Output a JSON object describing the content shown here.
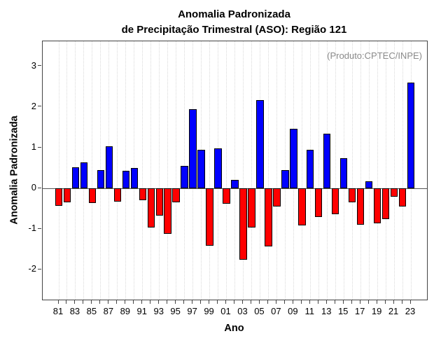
{
  "title": {
    "line1": "Anomalia Padronizada",
    "line2": "de Precipitação Trimestral (ASO): Região 121"
  },
  "annotation": "(Produto:CPTEC/INPE)",
  "chart_data": {
    "type": "bar",
    "title": "Anomalia Padronizada de Precipitação Trimestral (ASO): Região 121",
    "xlabel": "Ano",
    "ylabel": "Anomalia Padronizada",
    "categories": [
      "81",
      "82",
      "83",
      "84",
      "85",
      "86",
      "87",
      "88",
      "89",
      "90",
      "91",
      "92",
      "93",
      "94",
      "95",
      "96",
      "97",
      "98",
      "99",
      "00",
      "01",
      "02",
      "03",
      "04",
      "05",
      "06",
      "07",
      "08",
      "09",
      "10",
      "11",
      "12",
      "13",
      "14",
      "15",
      "16",
      "17",
      "18",
      "19",
      "20",
      "21",
      "22",
      "23"
    ],
    "values": [
      -0.43,
      -0.34,
      0.52,
      0.63,
      -0.37,
      0.45,
      1.03,
      -0.33,
      0.44,
      0.5,
      -0.29,
      -0.97,
      -0.67,
      -1.12,
      -0.34,
      0.55,
      1.95,
      0.94,
      -1.41,
      0.99,
      -0.38,
      0.21,
      -1.75,
      -0.97,
      2.18,
      -1.43,
      -0.44,
      0.45,
      1.46,
      -0.92,
      0.95,
      -0.71,
      1.34,
      -0.63,
      0.74,
      -0.35,
      -0.9,
      0.18,
      -0.86,
      -0.76,
      -0.21,
      -0.44,
      2.61
    ],
    "ylim": [
      -2.74,
      3.62
    ],
    "yticks": [
      -2,
      -1,
      0,
      1,
      2,
      3
    ],
    "xtick_label_step": 2,
    "positive_color": "#0000ff",
    "negative_color": "#ff0000",
    "grid": "dotted-vertical-per-category",
    "legend": "none",
    "annotation": "(Produto:CPTEC/INPE)"
  }
}
